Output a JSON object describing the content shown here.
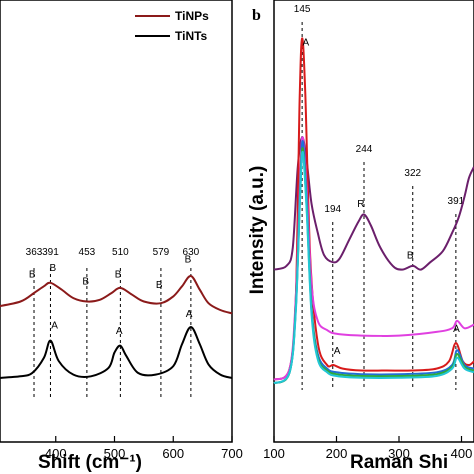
{
  "chart_data": [
    {
      "type": "line",
      "panel_label": "",
      "xlabel": "Shift (cm⁻¹)",
      "ylabel": "",
      "xlim": [
        300,
        700
      ],
      "xticks": [
        400,
        500,
        600,
        700
      ],
      "legend": {
        "placement": "top-right"
      },
      "series": [
        {
          "name": "TiNPs",
          "color": "#8b1a1a",
          "x": [
            300,
            340,
            363,
            380,
            391,
            410,
            430,
            453,
            475,
            495,
            510,
            530,
            550,
            579,
            600,
            615,
            630,
            645,
            660,
            680,
            700
          ],
          "y": [
            0.52,
            0.55,
            0.6,
            0.64,
            0.66,
            0.62,
            0.57,
            0.55,
            0.56,
            0.6,
            0.63,
            0.59,
            0.55,
            0.54,
            0.58,
            0.64,
            0.7,
            0.62,
            0.54,
            0.5,
            0.48
          ]
        },
        {
          "name": "TiNTs",
          "color": "#000000",
          "x": [
            300,
            340,
            360,
            380,
            391,
            405,
            430,
            460,
            490,
            500,
            510,
            520,
            540,
            570,
            600,
            615,
            630,
            645,
            660,
            680,
            700
          ],
          "y": [
            0.1,
            0.11,
            0.13,
            0.22,
            0.32,
            0.2,
            0.12,
            0.11,
            0.16,
            0.25,
            0.29,
            0.23,
            0.13,
            0.12,
            0.17,
            0.3,
            0.4,
            0.3,
            0.18,
            0.12,
            0.1
          ]
        }
      ],
      "peak_lines": [
        {
          "x": 363,
          "label": "363"
        },
        {
          "x": 391,
          "label": "391"
        },
        {
          "x": 453,
          "label": "453"
        },
        {
          "x": 510,
          "label": "510"
        },
        {
          "x": 579,
          "label": "579"
        },
        {
          "x": 630,
          "label": "630"
        }
      ],
      "annotations": [
        {
          "x": 360,
          "y": 0.69,
          "text": "B"
        },
        {
          "x": 395,
          "y": 0.73,
          "text": "B"
        },
        {
          "x": 451,
          "y": 0.65,
          "text": "B"
        },
        {
          "x": 506,
          "y": 0.69,
          "text": "B"
        },
        {
          "x": 576,
          "y": 0.63,
          "text": "B"
        },
        {
          "x": 625,
          "y": 0.78,
          "text": "B"
        },
        {
          "x": 398,
          "y": 0.39,
          "text": "A"
        },
        {
          "x": 508,
          "y": 0.36,
          "text": "A"
        },
        {
          "x": 627,
          "y": 0.46,
          "text": "A"
        }
      ]
    },
    {
      "type": "line",
      "panel_label": "b",
      "xlabel": "Raman Shi",
      "ylabel": "Intensity (a.u.)",
      "xlim": [
        100,
        420
      ],
      "ylim": [
        0,
        1
      ],
      "xticks": [
        100,
        200,
        300,
        400
      ],
      "series": [
        {
          "color": "#6b1f6b",
          "x": [
            100,
            120,
            130,
            138,
            145,
            152,
            160,
            170,
            180,
            194,
            205,
            220,
            235,
            244,
            255,
            270,
            290,
            305,
            322,
            335,
            350,
            370,
            385,
            395,
            405,
            412,
            420
          ],
          "y": [
            0.32,
            0.33,
            0.38,
            0.6,
            0.68,
            0.62,
            0.5,
            0.42,
            0.36,
            0.34,
            0.35,
            0.4,
            0.45,
            0.47,
            0.44,
            0.38,
            0.33,
            0.32,
            0.33,
            0.32,
            0.34,
            0.37,
            0.42,
            0.46,
            0.52,
            0.57,
            0.6
          ]
        },
        {
          "color": "#d81b1b",
          "x": [
            100,
            125,
            135,
            141,
            145,
            150,
            158,
            170,
            185,
            195,
            210,
            240,
            280,
            320,
            360,
            380,
            391,
            402,
            412,
            420
          ],
          "y": [
            0.02,
            0.05,
            0.25,
            0.78,
            0.95,
            0.8,
            0.35,
            0.12,
            0.06,
            0.06,
            0.05,
            0.045,
            0.045,
            0.045,
            0.05,
            0.07,
            0.12,
            0.07,
            0.06,
            0.07
          ]
        },
        {
          "color": "#e040e0",
          "x": [
            100,
            125,
            135,
            142,
            146,
            152,
            160,
            170,
            185,
            200,
            240,
            300,
            360,
            385,
            393,
            405,
            420
          ],
          "y": [
            0.02,
            0.05,
            0.25,
            0.58,
            0.68,
            0.55,
            0.28,
            0.18,
            0.155,
            0.145,
            0.14,
            0.14,
            0.15,
            0.16,
            0.18,
            0.16,
            0.17
          ]
        },
        {
          "color": "#1f6fd8",
          "x": [
            100,
            125,
            135,
            142,
            146,
            152,
            160,
            170,
            185,
            200,
            240,
            300,
            360,
            385,
            393,
            405,
            420
          ],
          "y": [
            0.01,
            0.04,
            0.22,
            0.55,
            0.67,
            0.52,
            0.22,
            0.09,
            0.05,
            0.04,
            0.035,
            0.035,
            0.04,
            0.06,
            0.1,
            0.06,
            0.05
          ]
        },
        {
          "color": "#2eaa3a",
          "x": [
            100,
            125,
            135,
            142,
            146,
            152,
            160,
            170,
            185,
            200,
            240,
            300,
            360,
            385,
            393,
            405,
            420
          ],
          "y": [
            0.01,
            0.04,
            0.22,
            0.54,
            0.65,
            0.5,
            0.21,
            0.08,
            0.045,
            0.035,
            0.03,
            0.03,
            0.035,
            0.055,
            0.09,
            0.055,
            0.045
          ]
        },
        {
          "color": "#22c6d6",
          "x": [
            100,
            125,
            135,
            142,
            146,
            152,
            160,
            170,
            185,
            200,
            240,
            300,
            360,
            385,
            393,
            405,
            420
          ],
          "y": [
            0.01,
            0.04,
            0.21,
            0.53,
            0.64,
            0.49,
            0.2,
            0.075,
            0.04,
            0.03,
            0.025,
            0.025,
            0.03,
            0.05,
            0.08,
            0.05,
            0.04
          ]
        }
      ],
      "peak_lines": [
        {
          "x": 145,
          "label": "145"
        },
        {
          "x": 194,
          "label": "194"
        },
        {
          "x": 244,
          "label": "244"
        },
        {
          "x": 322,
          "label": "322"
        },
        {
          "x": 391,
          "label": "391"
        }
      ],
      "annotations": [
        {
          "x": 151,
          "y": 0.93,
          "text": "A"
        },
        {
          "x": 239,
          "y": 0.49,
          "text": "R"
        },
        {
          "x": 318,
          "y": 0.35,
          "text": "B"
        },
        {
          "x": 201,
          "y": 0.09,
          "text": "A"
        },
        {
          "x": 392,
          "y": 0.15,
          "text": "A"
        }
      ]
    }
  ]
}
